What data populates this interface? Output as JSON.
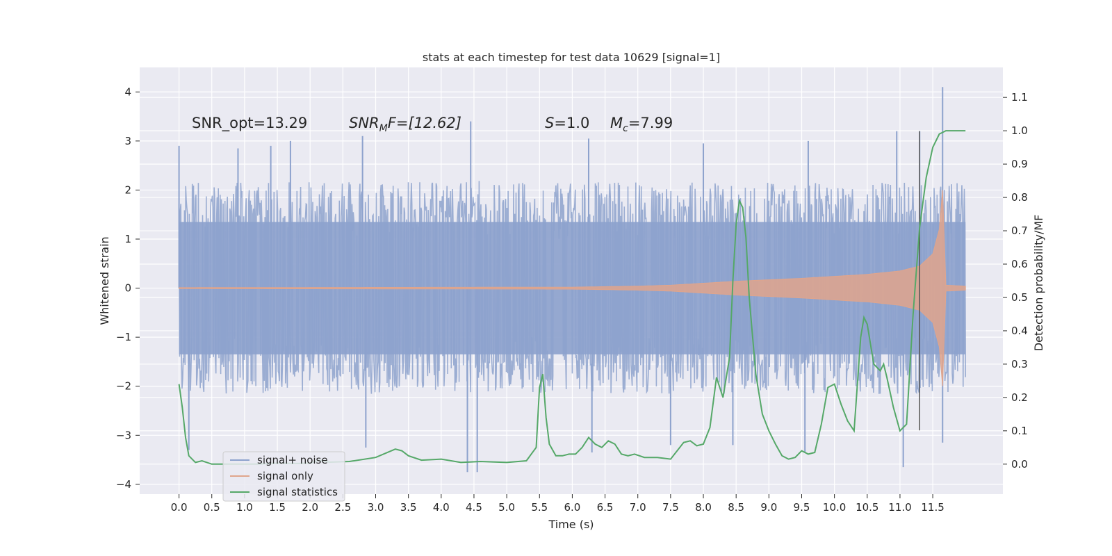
{
  "chart_data": {
    "type": "line",
    "title": "stats at each timestep for test data 10629 [signal=1]",
    "xlabel": "Time (s)",
    "ylabel_left": "Whitened strain",
    "ylabel_right": "Detection probability/MF",
    "xlim": [
      -0.6,
      12.57
    ],
    "ylim_left": [
      -4.2,
      4.5
    ],
    "ylim_right": [
      -0.09,
      1.19
    ],
    "x_ticks": [
      0.0,
      0.5,
      1.0,
      1.5,
      2.0,
      2.5,
      3.0,
      3.5,
      4.0,
      4.5,
      5.0,
      5.5,
      6.0,
      6.5,
      7.0,
      7.5,
      8.0,
      8.5,
      9.0,
      9.5,
      10.0,
      10.5,
      11.0,
      11.5
    ],
    "x_tick_labels": [
      "0.0",
      "0.5",
      "1.0",
      "1.5",
      "2.0",
      "2.5",
      "3.0",
      "3.5",
      "4.0",
      "4.5",
      "5.0",
      "5.5",
      "6.0",
      "6.5",
      "7.0",
      "7.5",
      "8.0",
      "8.5",
      "9.0",
      "9.5",
      "10.0",
      "10.5",
      "11.0",
      "11.5"
    ],
    "y_ticks_left": [
      -4,
      -3,
      -2,
      -1,
      0,
      1,
      2,
      3,
      4
    ],
    "y_tick_labels_left": [
      "−4",
      "−3",
      "−2",
      "−1",
      "0",
      "1",
      "2",
      "3",
      "4"
    ],
    "y_ticks_right": [
      0.0,
      0.1,
      0.2,
      0.3,
      0.4,
      0.5,
      0.6,
      0.7,
      0.8,
      0.9,
      1.0,
      1.1
    ],
    "y_tick_labels_right": [
      "0.0",
      "0.1",
      "0.2",
      "0.3",
      "0.4",
      "0.5",
      "0.6",
      "0.7",
      "0.8",
      "0.9",
      "1.0",
      "1.1"
    ],
    "grid": true,
    "legend_position": "bottom-left",
    "annotations": {
      "snr_opt": "SNR_opt=13.29",
      "snr_mf_name": "SNR",
      "snr_mf_sub": "M",
      "snr_mf_rest": "F=[12.62]",
      "s_name": "S",
      "s_rest": "=1.0",
      "mc_name": "M",
      "mc_sub": "c",
      "mc_rest": "=7.99"
    },
    "vline": {
      "x": 11.3,
      "y_range": [
        -2.9,
        3.2
      ]
    },
    "series": [
      {
        "name": "signal+ noise",
        "axis": "left",
        "color": "#8da2cd",
        "x_range": [
          0.0,
          12.0
        ],
        "typical_envelope": [
          -1.6,
          1.6
        ],
        "peaks": [
          {
            "x": 0.0,
            "y": 2.9
          },
          {
            "x": 0.9,
            "y": 2.85
          },
          {
            "x": 1.4,
            "y": 2.9
          },
          {
            "x": 1.7,
            "y": 3.0
          },
          {
            "x": 2.8,
            "y": 3.1
          },
          {
            "x": 4.45,
            "y": 3.4
          },
          {
            "x": 6.25,
            "y": 3.05
          },
          {
            "x": 8.0,
            "y": 2.95
          },
          {
            "x": 9.6,
            "y": 3.0
          },
          {
            "x": 10.95,
            "y": 3.2
          },
          {
            "x": 11.3,
            "y": 3.2
          },
          {
            "x": 11.65,
            "y": 4.1
          }
        ],
        "troughs": [
          {
            "x": 0.15,
            "y": -3.3
          },
          {
            "x": 2.85,
            "y": -3.25
          },
          {
            "x": 4.4,
            "y": -3.75
          },
          {
            "x": 4.55,
            "y": -3.75
          },
          {
            "x": 6.3,
            "y": -3.35
          },
          {
            "x": 7.5,
            "y": -3.2
          },
          {
            "x": 8.45,
            "y": -3.2
          },
          {
            "x": 9.55,
            "y": -3.35
          },
          {
            "x": 11.05,
            "y": -3.65
          },
          {
            "x": 11.65,
            "y": -3.15
          }
        ]
      },
      {
        "name": "signal only",
        "axis": "left",
        "color": "#e0a58c",
        "x": [
          0.0,
          6.0,
          7.0,
          7.5,
          8.0,
          8.5,
          9.0,
          9.5,
          10.0,
          10.5,
          11.0,
          11.3,
          11.5,
          11.6,
          11.65,
          11.67,
          11.7,
          12.0
        ],
        "amplitude": [
          0.01,
          0.02,
          0.04,
          0.06,
          0.1,
          0.14,
          0.17,
          0.2,
          0.24,
          0.28,
          0.35,
          0.45,
          0.7,
          1.2,
          2.0,
          1.4,
          0.06,
          0.04
        ]
      },
      {
        "name": "signal statistics",
        "axis": "right",
        "color": "#55a868",
        "x": [
          0.0,
          0.05,
          0.1,
          0.15,
          0.25,
          0.35,
          0.5,
          0.6,
          0.8,
          1.0,
          1.2,
          1.5,
          1.8,
          2.0,
          2.15,
          2.3,
          2.6,
          3.0,
          3.3,
          3.4,
          3.5,
          3.7,
          4.0,
          4.3,
          4.6,
          5.0,
          5.3,
          5.45,
          5.5,
          5.55,
          5.6,
          5.65,
          5.75,
          5.85,
          5.95,
          6.05,
          6.15,
          6.25,
          6.35,
          6.45,
          6.55,
          6.65,
          6.75,
          6.85,
          6.95,
          7.1,
          7.3,
          7.5,
          7.7,
          7.8,
          7.9,
          8.0,
          8.1,
          8.2,
          8.3,
          8.4,
          8.45,
          8.5,
          8.55,
          8.6,
          8.65,
          8.7,
          8.8,
          8.9,
          9.0,
          9.1,
          9.2,
          9.3,
          9.4,
          9.5,
          9.6,
          9.7,
          9.8,
          9.9,
          10.0,
          10.1,
          10.2,
          10.3,
          10.4,
          10.45,
          10.5,
          10.55,
          10.6,
          10.7,
          10.75,
          10.8,
          10.9,
          11.0,
          11.1,
          11.2,
          11.3,
          11.4,
          11.5,
          11.6,
          11.7,
          12.0
        ],
        "y": [
          0.24,
          0.17,
          0.08,
          0.025,
          0.005,
          0.01,
          0.0,
          0.0,
          0.0,
          0.0,
          0.0,
          0.003,
          0.002,
          0.003,
          0.012,
          0.006,
          0.008,
          0.02,
          0.045,
          0.04,
          0.025,
          0.012,
          0.015,
          0.005,
          0.008,
          0.005,
          0.01,
          0.05,
          0.23,
          0.27,
          0.14,
          0.06,
          0.025,
          0.025,
          0.03,
          0.03,
          0.05,
          0.08,
          0.06,
          0.05,
          0.07,
          0.06,
          0.03,
          0.025,
          0.03,
          0.02,
          0.02,
          0.015,
          0.065,
          0.07,
          0.055,
          0.06,
          0.11,
          0.26,
          0.2,
          0.32,
          0.55,
          0.72,
          0.79,
          0.77,
          0.68,
          0.5,
          0.27,
          0.15,
          0.1,
          0.06,
          0.025,
          0.015,
          0.02,
          0.04,
          0.03,
          0.035,
          0.12,
          0.23,
          0.24,
          0.18,
          0.13,
          0.1,
          0.38,
          0.44,
          0.42,
          0.36,
          0.3,
          0.28,
          0.3,
          0.26,
          0.17,
          0.1,
          0.12,
          0.45,
          0.71,
          0.86,
          0.95,
          0.99,
          1.0,
          1.0
        ]
      }
    ]
  }
}
